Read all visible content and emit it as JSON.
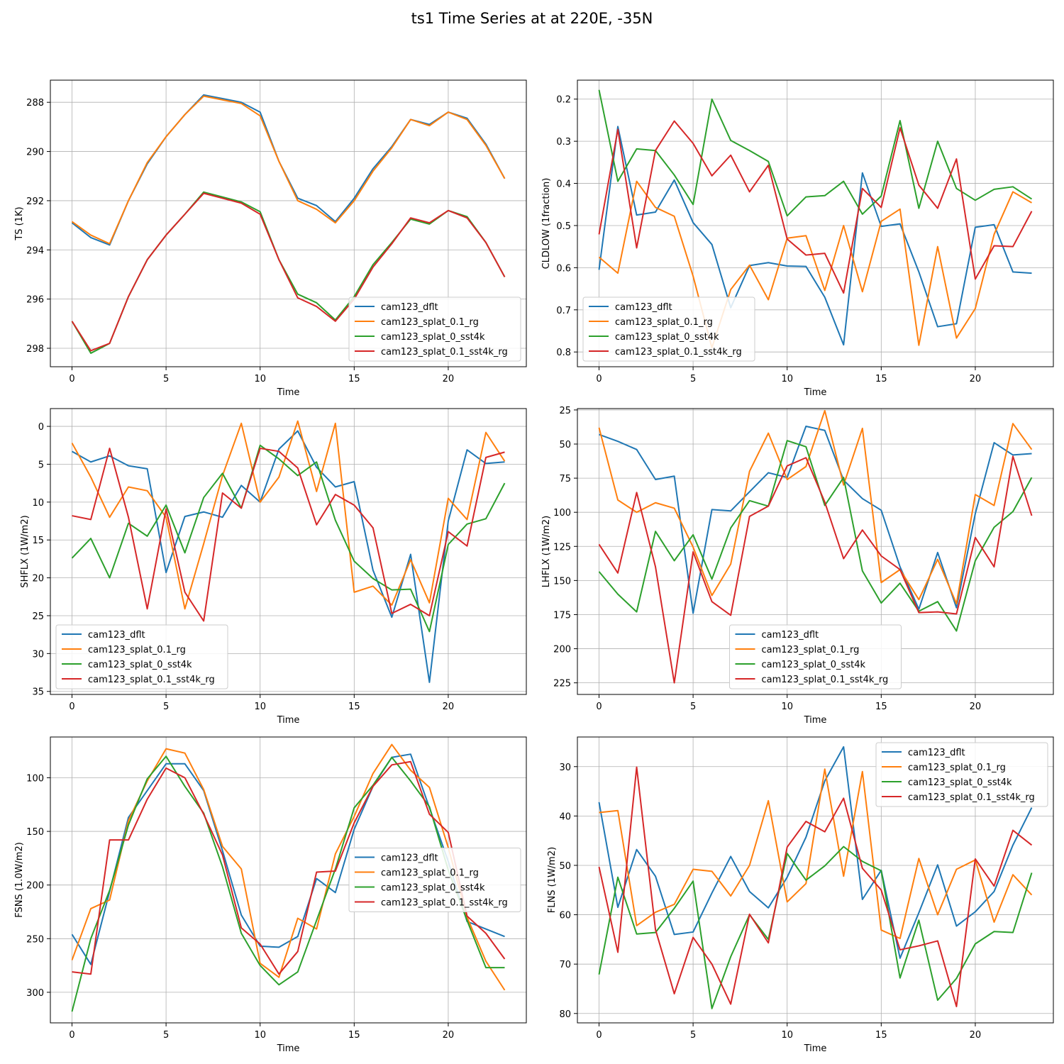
{
  "title": "ts1 Time Series at at 220E, -35N",
  "colors": {
    "cam123_dflt": "#1f77b4",
    "cam123_splat_0.1_rg": "#ff7f0e",
    "cam123_splat_0_sst4k": "#2ca02c",
    "cam123_splat_0.1_sst4k_rg": "#d62728"
  },
  "chart_data": [
    {
      "type": "line",
      "xlabel": "Time",
      "ylabel": "TS (1K)",
      "x_ticks": [
        0,
        5,
        10,
        15,
        20
      ],
      "xlim": [
        -1.15,
        24.15
      ],
      "ylim": [
        298.75,
        287.1
      ],
      "y_ticks": [
        288,
        290,
        292,
        294,
        296,
        298
      ],
      "inverted_y": true,
      "grid": true,
      "legend": "lower-right",
      "series": [
        {
          "name": "cam123_dflt",
          "values": [
            292.9,
            293.5,
            293.8,
            292.0,
            290.5,
            289.4,
            288.5,
            287.7,
            287.85,
            288.0,
            288.4,
            290.4,
            291.9,
            292.2,
            292.85,
            291.9,
            290.7,
            289.8,
            288.7,
            288.9,
            288.4,
            288.65,
            289.7,
            291.1
          ]
        },
        {
          "name": "cam123_splat_0.1_rg",
          "values": [
            292.85,
            293.4,
            293.75,
            292.0,
            290.45,
            289.4,
            288.5,
            287.75,
            287.9,
            288.05,
            288.55,
            290.4,
            292.0,
            292.35,
            292.9,
            292.0,
            290.8,
            289.85,
            288.7,
            288.95,
            288.4,
            288.7,
            289.75,
            291.1
          ]
        },
        {
          "name": "cam123_splat_0_sst4k",
          "values": [
            296.9,
            298.2,
            297.8,
            295.9,
            294.4,
            293.4,
            292.55,
            291.65,
            291.85,
            292.05,
            292.45,
            294.4,
            295.8,
            296.15,
            296.85,
            295.9,
            294.6,
            293.7,
            292.75,
            292.95,
            292.4,
            292.65,
            293.7,
            295.1
          ]
        },
        {
          "name": "cam123_splat_0.1_sst4k_rg",
          "values": [
            296.9,
            298.1,
            297.8,
            295.9,
            294.4,
            293.4,
            292.55,
            291.7,
            291.9,
            292.1,
            292.55,
            294.4,
            295.95,
            296.3,
            296.9,
            296.0,
            294.7,
            293.75,
            292.7,
            292.9,
            292.4,
            292.7,
            293.7,
            295.1
          ]
        }
      ]
    },
    {
      "type": "line",
      "xlabel": "Time",
      "ylabel": "CLDLOW (1fraction)",
      "x_ticks": [
        0,
        5,
        10,
        15,
        20
      ],
      "xlim": [
        -1.15,
        24.15
      ],
      "ylim": [
        0.835,
        0.155
      ],
      "y_ticks": [
        0.2,
        0.3,
        0.4,
        0.5,
        0.6,
        0.7,
        0.8
      ],
      "inverted_y": true,
      "grid": true,
      "legend": "lower-left",
      "series": [
        {
          "name": "cam123_dflt",
          "values": [
            0.605,
            0.265,
            0.475,
            0.468,
            0.392,
            0.493,
            0.545,
            0.695,
            0.595,
            0.588,
            0.596,
            0.597,
            0.67,
            0.783,
            0.375,
            0.502,
            0.496,
            0.61,
            0.74,
            0.733,
            0.504,
            0.498,
            0.61,
            0.613
          ]
        },
        {
          "name": "cam123_splat_0.1_rg",
          "values": [
            0.575,
            0.613,
            0.395,
            0.457,
            0.478,
            0.62,
            0.79,
            0.652,
            0.594,
            0.676,
            0.53,
            0.524,
            0.654,
            0.5,
            0.657,
            0.49,
            0.461,
            0.784,
            0.55,
            0.767,
            0.697,
            0.521,
            0.42,
            0.446
          ]
        },
        {
          "name": "cam123_splat_0_sst4k",
          "values": [
            0.178,
            0.395,
            0.318,
            0.322,
            0.38,
            0.45,
            0.2,
            0.298,
            0.322,
            0.348,
            0.477,
            0.432,
            0.429,
            0.395,
            0.473,
            0.43,
            0.251,
            0.459,
            0.3,
            0.412,
            0.44,
            0.414,
            0.408,
            0.437
          ]
        },
        {
          "name": "cam123_splat_0.1_sst4k_rg",
          "values": [
            0.521,
            0.272,
            0.553,
            0.322,
            0.252,
            0.305,
            0.382,
            0.333,
            0.42,
            0.357,
            0.532,
            0.57,
            0.566,
            0.66,
            0.412,
            0.457,
            0.268,
            0.404,
            0.459,
            0.342,
            0.627,
            0.548,
            0.55,
            0.466
          ]
        }
      ]
    },
    {
      "type": "line",
      "xlabel": "Time",
      "ylabel": "SHFLX (1W/m2)",
      "x_ticks": [
        0,
        5,
        10,
        15,
        20
      ],
      "xlim": [
        -1.15,
        24.15
      ],
      "ylim": [
        35.4,
        -2.35
      ],
      "y_ticks": [
        0,
        5,
        10,
        15,
        20,
        25,
        30,
        35
      ],
      "inverted_y": true,
      "grid": true,
      "legend": "lower-left",
      "series": [
        {
          "name": "cam123_dflt",
          "values": [
            3.3,
            4.7,
            3.9,
            5.2,
            5.6,
            19.3,
            11.9,
            11.3,
            12.0,
            7.8,
            10.0,
            3.0,
            0.6,
            5.4,
            8.0,
            7.3,
            19.0,
            25.2,
            16.9,
            33.8,
            12.5,
            3.1,
            4.9,
            4.7
          ]
        },
        {
          "name": "cam123_splat_0.1_rg",
          "values": [
            2.2,
            6.7,
            12.0,
            8.0,
            8.5,
            12.0,
            24.1,
            15.5,
            6.5,
            -0.4,
            10.0,
            6.7,
            -0.7,
            8.6,
            -0.4,
            21.9,
            21.1,
            23.6,
            17.6,
            23.3,
            9.5,
            12.3,
            0.8,
            4.6
          ]
        },
        {
          "name": "cam123_splat_0_sst4k",
          "values": [
            17.4,
            14.8,
            20.0,
            12.8,
            14.5,
            10.4,
            16.7,
            9.4,
            6.2,
            10.8,
            2.5,
            4.3,
            6.5,
            4.7,
            12.4,
            17.8,
            20.1,
            21.6,
            21.5,
            27.1,
            15.6,
            12.9,
            12.2,
            7.5
          ]
        },
        {
          "name": "cam123_splat_0.1_sst4k_rg",
          "values": [
            11.8,
            12.3,
            2.9,
            12.0,
            24.1,
            10.9,
            21.9,
            25.7,
            8.8,
            10.8,
            2.9,
            3.3,
            5.5,
            13.0,
            9.0,
            10.4,
            13.4,
            24.7,
            23.5,
            25.0,
            13.9,
            15.8,
            4.1,
            3.4
          ]
        }
      ]
    },
    {
      "type": "line",
      "xlabel": "Time",
      "ylabel": "LHFLX (1W/m2)",
      "x_ticks": [
        0,
        5,
        10,
        15,
        20
      ],
      "xlim": [
        -1.15,
        24.15
      ],
      "ylim": [
        233.5,
        24.0
      ],
      "y_ticks": [
        25,
        50,
        75,
        100,
        125,
        150,
        175,
        200,
        225
      ],
      "inverted_y": true,
      "grid": true,
      "legend": "lower-center",
      "series": [
        {
          "name": "cam123_dflt",
          "values": [
            43.0,
            48.0,
            54.0,
            76.0,
            73.5,
            174.0,
            98.0,
            99.0,
            85.0,
            71.0,
            74.5,
            37.0,
            40.0,
            76.5,
            90.0,
            98.5,
            140.0,
            171.0,
            129.5,
            170.0,
            101.0,
            49.0,
            58.0,
            57.0
          ]
        },
        {
          "name": "cam123_splat_0.1_rg",
          "values": [
            38.0,
            91.0,
            100.0,
            93.0,
            97.0,
            125.5,
            161.0,
            138.0,
            70.0,
            42.0,
            76.0,
            66.5,
            25.5,
            80.0,
            38.5,
            151.5,
            142.0,
            164.0,
            134.5,
            167.0,
            87.0,
            95.0,
            35.0,
            54.0
          ]
        },
        {
          "name": "cam123_splat_0_sst4k",
          "values": [
            143.5,
            160.0,
            173.0,
            114.0,
            135.5,
            116.5,
            149.0,
            111.5,
            91.5,
            95.5,
            47.5,
            52.0,
            95.0,
            74.5,
            143.0,
            166.5,
            152.0,
            172.5,
            165.5,
            187.0,
            135.5,
            111.0,
            99.5,
            74.5
          ]
        },
        {
          "name": "cam123_splat_0.1_sst4k_rg",
          "values": [
            123.5,
            144.5,
            85.5,
            140.0,
            225.0,
            129.0,
            165.5,
            175.5,
            103.0,
            95.5,
            66.0,
            60.0,
            92.5,
            134.0,
            113.0,
            132.0,
            142.0,
            173.5,
            173.0,
            174.5,
            118.5,
            140.0,
            59.0,
            102.5
          ]
        }
      ]
    },
    {
      "type": "line",
      "xlabel": "Time",
      "ylabel": "FSNS (1.0W/m2)",
      "x_ticks": [
        0,
        5,
        10,
        15,
        20
      ],
      "xlim": [
        -1.15,
        24.15
      ],
      "ylim": [
        328.5,
        62.0
      ],
      "y_ticks": [
        100,
        150,
        200,
        250,
        300
      ],
      "inverted_y": true,
      "grid": true,
      "legend": "center-right",
      "series": [
        {
          "name": "cam123_dflt",
          "values": [
            246.0,
            274.0,
            206.0,
            137.0,
            112.0,
            87.0,
            87.0,
            112.0,
            168.0,
            228.0,
            257.0,
            258.0,
            248.0,
            194.0,
            207.0,
            148.0,
            108.0,
            81.0,
            78.0,
            128.0,
            178.0,
            234.0,
            241.0,
            248.0
          ]
        },
        {
          "name": "cam123_splat_0.1_rg",
          "values": [
            270.0,
            222.0,
            214.0,
            140.0,
            103.0,
            73.0,
            77.0,
            111.0,
            164.0,
            185.0,
            273.0,
            286.0,
            231.0,
            241.0,
            171.0,
            136.0,
            96.0,
            69.0,
            93.0,
            109.0,
            165.0,
            230.0,
            271.0,
            298.0
          ]
        },
        {
          "name": "cam123_splat_0_sst4k",
          "values": [
            318.0,
            250.0,
            205.0,
            144.0,
            101.0,
            80.0,
            108.0,
            133.0,
            183.0,
            245.0,
            275.0,
            293.0,
            281.0,
            233.0,
            185.0,
            128.0,
            107.0,
            81.0,
            103.0,
            127.0,
            186.0,
            233.0,
            277.0,
            277.0
          ]
        },
        {
          "name": "cam123_splat_0.1_sst4k_rg",
          "values": [
            281.0,
            283.0,
            158.0,
            158.0,
            120.0,
            91.0,
            100.0,
            134.0,
            172.0,
            240.0,
            255.0,
            283.0,
            262.0,
            188.0,
            187.0,
            142.0,
            108.0,
            88.0,
            85.0,
            134.0,
            151.0,
            229.0,
            245.0,
            269.0
          ]
        }
      ]
    },
    {
      "type": "line",
      "xlabel": "Time",
      "ylabel": "FLNS (1W/m2)",
      "x_ticks": [
        0,
        5,
        10,
        15,
        20
      ],
      "xlim": [
        -1.15,
        24.15
      ],
      "ylim": [
        81.9,
        24.0
      ],
      "y_ticks": [
        30,
        40,
        50,
        60,
        70,
        80
      ],
      "inverted_y": true,
      "grid": true,
      "legend": "top-right",
      "series": [
        {
          "name": "cam123_dflt",
          "values": [
            37.2,
            58.5,
            46.8,
            52.2,
            64.0,
            63.5,
            55.6,
            48.2,
            55.3,
            58.6,
            52.4,
            44.3,
            32.9,
            26.0,
            56.9,
            51.0,
            68.8,
            59.6,
            49.9,
            62.3,
            59.4,
            55.3,
            45.9,
            38.3
          ]
        },
        {
          "name": "cam123_splat_0.1_rg",
          "values": [
            39.3,
            38.9,
            62.2,
            59.5,
            57.9,
            50.8,
            51.2,
            56.2,
            50.0,
            36.9,
            57.4,
            53.7,
            30.5,
            52.2,
            31.0,
            63.1,
            64.8,
            48.6,
            60.0,
            50.8,
            48.9,
            61.5,
            51.9,
            56.0
          ]
        },
        {
          "name": "cam123_splat_0_sst4k",
          "values": [
            72.1,
            52.4,
            63.9,
            63.6,
            58.7,
            53.2,
            79.0,
            68.5,
            60.0,
            65.0,
            47.6,
            53.0,
            50.1,
            46.2,
            49.2,
            51.1,
            72.8,
            61.1,
            77.3,
            72.9,
            65.9,
            63.4,
            63.6,
            51.5
          ]
        },
        {
          "name": "cam123_splat_0.1_sst4k_rg",
          "values": [
            50.3,
            67.6,
            30.1,
            63.0,
            76.0,
            64.6,
            70.0,
            78.1,
            59.9,
            65.7,
            46.3,
            41.1,
            43.2,
            36.4,
            50.6,
            55.0,
            67.1,
            66.3,
            65.3,
            78.6,
            48.7,
            54.2,
            42.9,
            45.9
          ]
        }
      ]
    }
  ]
}
